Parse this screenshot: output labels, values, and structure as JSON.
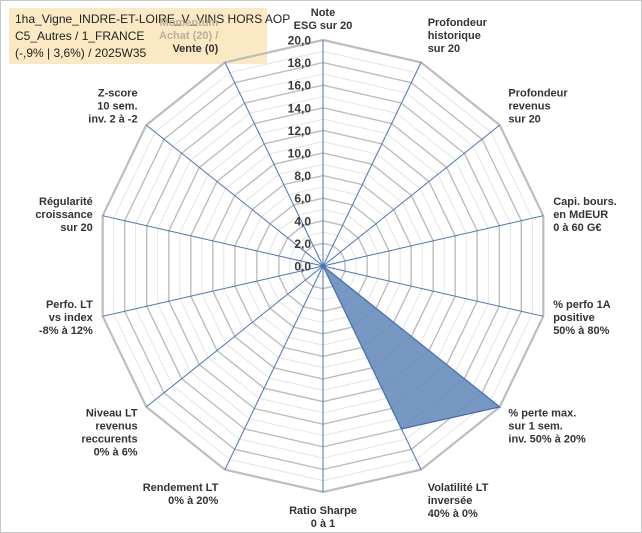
{
  "title_box": {
    "line1": "1ha_Vigne_INDRE-ET-LOIRE_V_VINS HORS AOP",
    "line2": "C5_Autres / 1_FRANCE",
    "line3": "(-,9% | 3,6%) / 2025W35"
  },
  "colors": {
    "fill": "#6b8fbd",
    "stroke": "#3f67a8",
    "spoke": "#4a74b8",
    "grid": "#c9c9c9",
    "title_bg": "#fbe9c4"
  },
  "chart_data": {
    "type": "radar",
    "rlim": [
      0,
      20
    ],
    "tick_step": 2,
    "ticks": [
      "0,0",
      "2,0",
      "4,0",
      "6,0",
      "8,0",
      "10,0",
      "12,0",
      "14,0",
      "16,0",
      "18,0",
      "20,0"
    ],
    "grid": true,
    "categories": [
      [
        "Note",
        "ESG sur 20"
      ],
      [
        "Profondeur",
        "historique",
        "sur 20"
      ],
      [
        "Profondeur",
        "revenus",
        "sur 20"
      ],
      [
        "Capi. bours.",
        "en MdEUR",
        "0 à 60 G€"
      ],
      [
        "% perfo 1A",
        "positive",
        "50% à 80%"
      ],
      [
        "% perte max.",
        "sur 1 sem.",
        "inv. 50% à 20%"
      ],
      [
        "Volatilité LT",
        "inversée",
        "40% à 0%"
      ],
      [
        "Ratio Sharpe",
        "0 à 1"
      ],
      [
        "Rendement LT",
        "0% à 20%"
      ],
      [
        "Niveau LT",
        "revenus",
        "reccurents",
        "0% à 6%"
      ],
      [
        "Perfo. LT",
        "vs index",
        "-8% à 12%"
      ],
      [
        "Régularité",
        "croissance",
        "sur 20"
      ],
      [
        "Z-score",
        "10 sem.",
        "inv. 2 à -2"
      ],
      [
        "Momentum",
        "Achat (20) /",
        "Vente (0)"
      ]
    ],
    "series": [
      {
        "values": [
          0,
          0,
          0,
          0,
          0,
          20,
          16,
          0,
          0,
          0,
          0,
          0,
          0,
          0
        ]
      }
    ]
  }
}
